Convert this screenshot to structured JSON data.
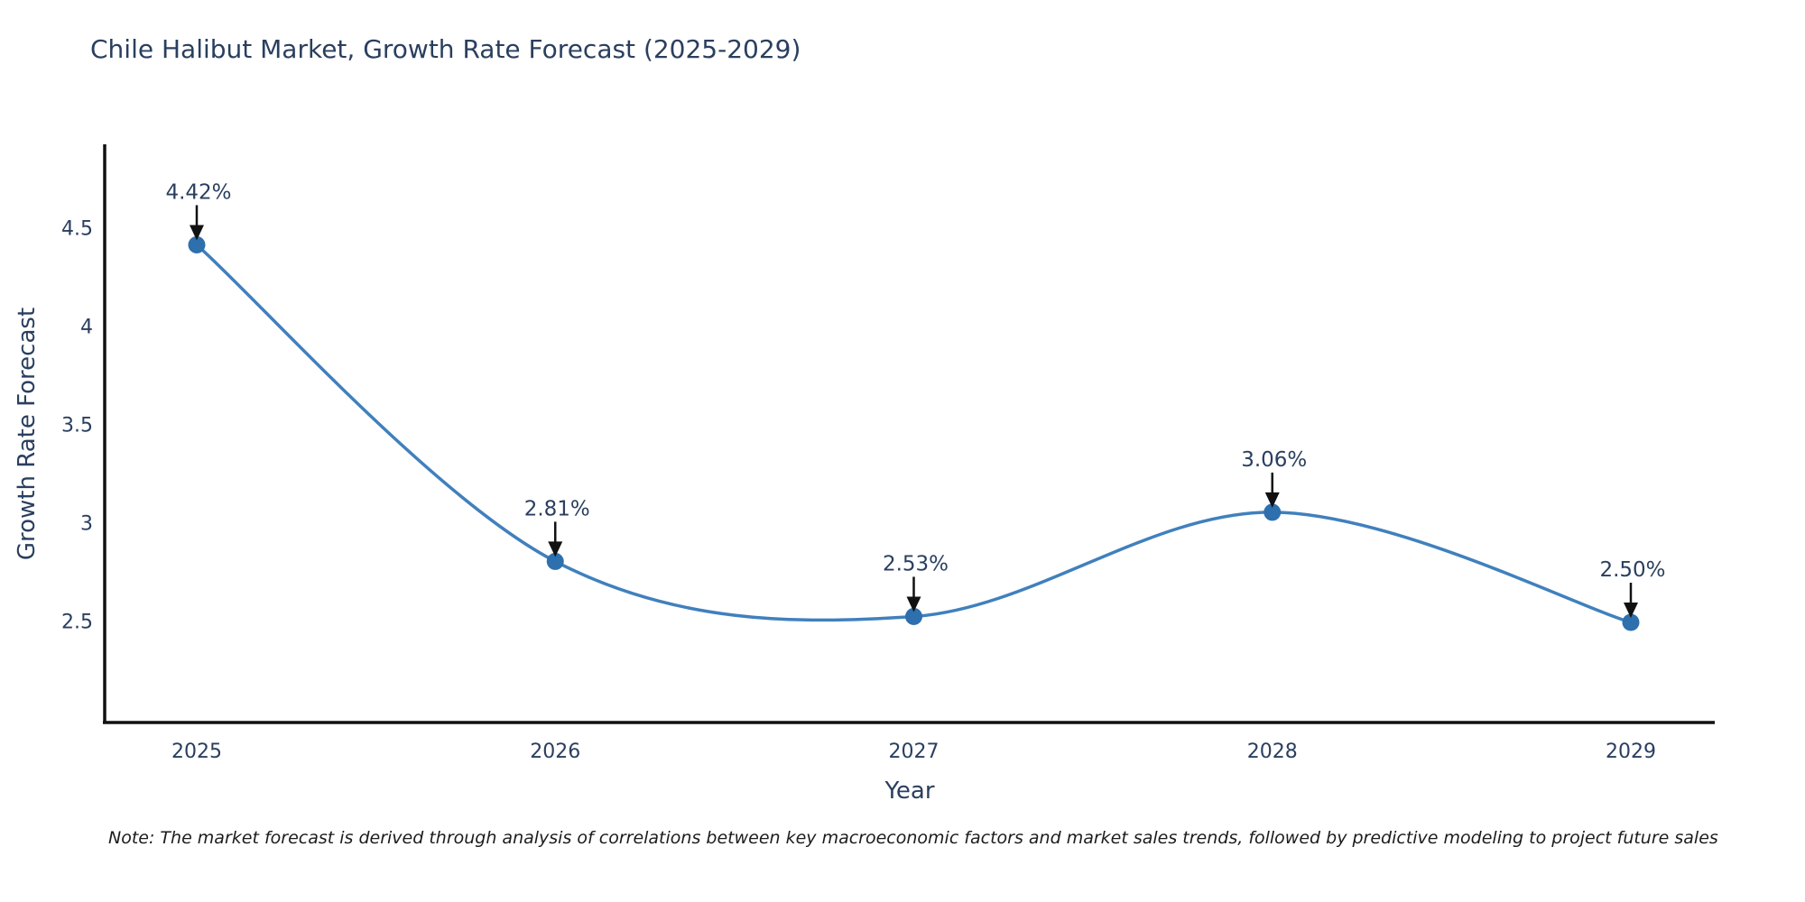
{
  "title": "Chile Halibut Market, Growth Rate Forecast (2025-2029)",
  "note": "Note: The market forecast is derived through analysis of correlations between key macroeconomic factors and market sales trends, followed by predictive modeling to project future sales",
  "chart_data": {
    "type": "line",
    "title": "Chile Halibut Market, Growth Rate Forecast (2025-2029)",
    "xlabel": "Year",
    "ylabel": "Growth Rate Forecast",
    "categories": [
      "2025",
      "2026",
      "2027",
      "2028",
      "2029"
    ],
    "values": [
      4.42,
      2.81,
      2.53,
      3.06,
      2.5
    ],
    "point_labels": [
      "4.42%",
      "2.81%",
      "2.53%",
      "3.06%",
      "2.50%"
    ],
    "yticks": [
      2.5,
      3,
      3.5,
      4,
      4.5
    ],
    "ylim": [
      2.0,
      4.95
    ],
    "grid": false,
    "legend": "none",
    "curve": "smooth-spline",
    "annotation_style": "value-label-with-down-arrow",
    "colors": {
      "line": "#4080bd",
      "marker": "#2e6fae",
      "axis": "#111111",
      "arrow": "#111111",
      "text": "#2a3f5f",
      "note_text": "#1c1c1c",
      "background": "#ffffff"
    }
  }
}
